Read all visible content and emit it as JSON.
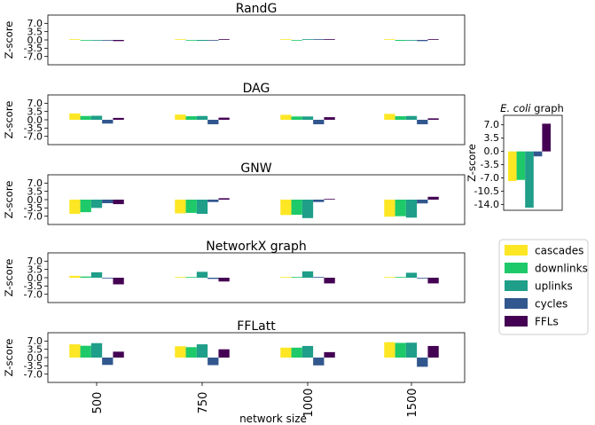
{
  "chart_data": {
    "type": "bar",
    "series_names": [
      "cascades",
      "downlinks",
      "uplinks",
      "cycles",
      "FFLs"
    ],
    "colors": [
      "#fde725",
      "#1ec96a",
      "#1f9e89",
      "#31578e",
      "#440154"
    ],
    "ylabel": "Z-score",
    "xlabel": "network size",
    "categories": [
      "500",
      "750",
      "1000",
      "1500"
    ],
    "yticks": [
      "7.0",
      "3.5",
      "0.0",
      "-3.5",
      "-7.0"
    ],
    "ylim": [
      -10.5,
      10.5
    ],
    "panels": [
      {
        "title": "RandG",
        "values": [
          [
            0.2,
            -0.3,
            -0.3,
            -0.2,
            -0.5
          ],
          [
            0.2,
            -0.2,
            -0.4,
            -0.1,
            0.2
          ],
          [
            0.1,
            -0.1,
            0.3,
            0.1,
            0.2
          ],
          [
            0.1,
            -0.4,
            -0.2,
            -0.5,
            0.1
          ]
        ]
      },
      {
        "title": "DAG",
        "values": [
          [
            2.7,
            1.6,
            1.7,
            -1.6,
            0.8
          ],
          [
            2.2,
            1.5,
            1.6,
            -1.9,
            0.9
          ],
          [
            2.1,
            1.4,
            1.4,
            -1.9,
            1.1
          ],
          [
            2.5,
            1.5,
            1.6,
            -1.9,
            0.6
          ]
        ]
      },
      {
        "title": "GNW",
        "values": [
          [
            -6.0,
            -5.3,
            -3.5,
            -1.5,
            -1.9
          ],
          [
            -5.8,
            -5.6,
            -6.0,
            -1.0,
            0.6
          ],
          [
            -6.5,
            -6.4,
            -7.8,
            -1.0,
            0.2
          ],
          [
            -7.2,
            -7.0,
            -7.6,
            -1.6,
            1.2
          ]
        ]
      },
      {
        "title": "NetworkX graph",
        "values": [
          [
            0.8,
            0.5,
            2.3,
            -0.2,
            -2.8
          ],
          [
            0.0,
            0.0,
            2.5,
            -0.5,
            -1.6
          ],
          [
            0.3,
            0.2,
            2.7,
            0.0,
            -2.4
          ],
          [
            0.2,
            0.1,
            2.1,
            -0.1,
            -2.4
          ]
        ]
      },
      {
        "title": "FFLatt",
        "values": [
          [
            5.6,
            5.0,
            6.1,
            -3.1,
            2.5
          ],
          [
            4.8,
            4.4,
            5.6,
            -3.2,
            3.5
          ],
          [
            4.2,
            4.2,
            4.9,
            -3.3,
            2.3
          ],
          [
            6.5,
            6.2,
            6.3,
            -3.9,
            4.9
          ]
        ]
      }
    ],
    "inset": {
      "title": "E. coli graph",
      "title_italic": "E. coli",
      "title_rest": " graph",
      "ylabel": "Z-score",
      "yticks": [
        "7.0",
        "3.5",
        "0.0",
        "-3.5",
        "-7.0",
        "-10.5",
        "-14.0"
      ],
      "ylim": [
        -15.5,
        9.5
      ],
      "values": [
        -7.8,
        -7.5,
        -14.8,
        -1.3,
        7.3
      ]
    }
  }
}
